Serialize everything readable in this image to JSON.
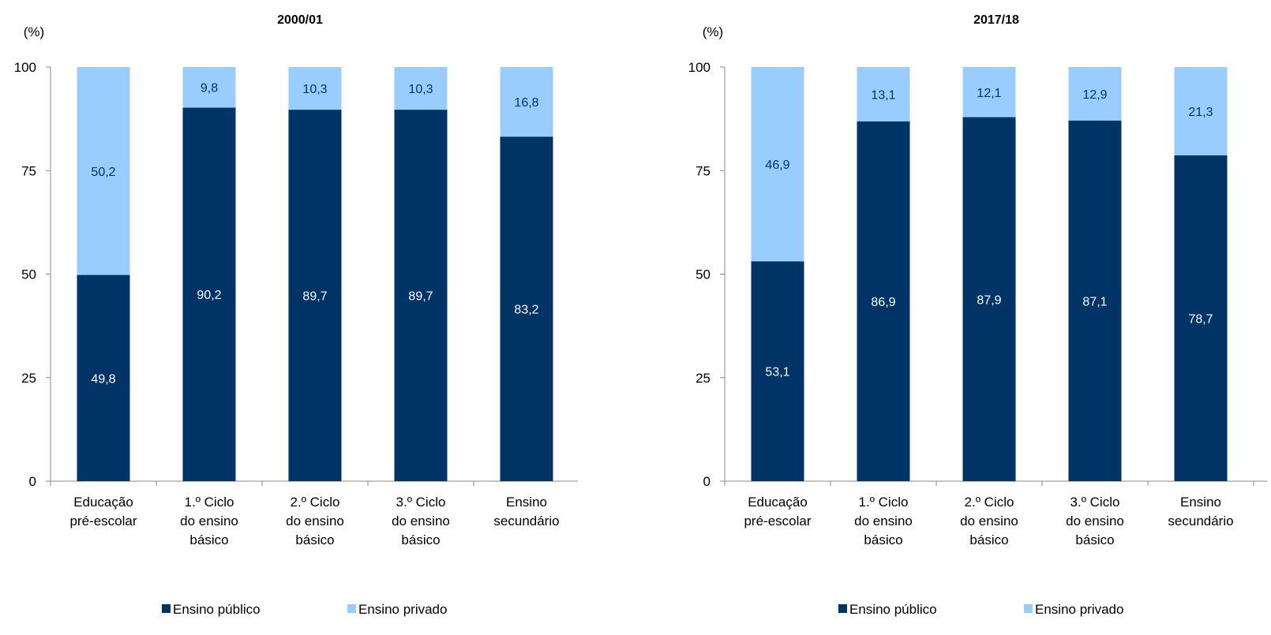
{
  "colors": {
    "public": "#003366",
    "private": "#99CCFF",
    "axis": "#898989",
    "text": "#000000",
    "label_on_dark": "#ffffff",
    "label_on_light": "#003366"
  },
  "chart_data": [
    {
      "type": "bar",
      "stacked": true,
      "title": "2000/01",
      "ylabel": "(%)",
      "ylim": [
        0,
        100
      ],
      "yticks": [
        0,
        25,
        50,
        75,
        100
      ],
      "categories": [
        [
          "Educação",
          "pré-escolar"
        ],
        [
          "1.º Ciclo",
          "do ensino",
          "básico"
        ],
        [
          "2.º Ciclo",
          "do ensino",
          "básico"
        ],
        [
          "3.º Ciclo",
          "do ensino",
          "básico"
        ],
        [
          "Ensino",
          "secundário"
        ]
      ],
      "series": [
        {
          "name": "Ensino público",
          "key": "public",
          "values": [
            49.8,
            90.2,
            89.7,
            89.7,
            83.2
          ],
          "labels": [
            "49,8",
            "90,2",
            "89,7",
            "89,7",
            "83,2"
          ]
        },
        {
          "name": "Ensino privado",
          "key": "private",
          "values": [
            50.2,
            9.8,
            10.3,
            10.3,
            16.8
          ],
          "labels": [
            "50,2",
            "9,8",
            "10,3",
            "10,3",
            "16,8"
          ]
        }
      ],
      "grid": false,
      "legend": "bottom"
    },
    {
      "type": "bar",
      "stacked": true,
      "title": "2017/18",
      "ylabel": "(%)",
      "ylim": [
        0,
        100
      ],
      "yticks": [
        0,
        25,
        50,
        75,
        100
      ],
      "categories": [
        [
          "Educação",
          "pré-escolar"
        ],
        [
          "1.º Ciclo",
          "do ensino",
          "básico"
        ],
        [
          "2.º Ciclo",
          "do ensino",
          "básico"
        ],
        [
          "3.º Ciclo",
          "do ensino",
          "básico"
        ],
        [
          "Ensino",
          "secundário"
        ]
      ],
      "series": [
        {
          "name": "Ensino público",
          "key": "public",
          "values": [
            53.1,
            86.9,
            87.9,
            87.1,
            78.7
          ],
          "labels": [
            "53,1",
            "86,9",
            "87,9",
            "87,1",
            "78,7"
          ]
        },
        {
          "name": "Ensino privado",
          "key": "private",
          "values": [
            46.9,
            13.1,
            12.1,
            12.9,
            21.3
          ],
          "labels": [
            "46,9",
            "13,1",
            "12,1",
            "12,9",
            "21,3"
          ]
        }
      ],
      "grid": false,
      "legend": "bottom"
    }
  ]
}
